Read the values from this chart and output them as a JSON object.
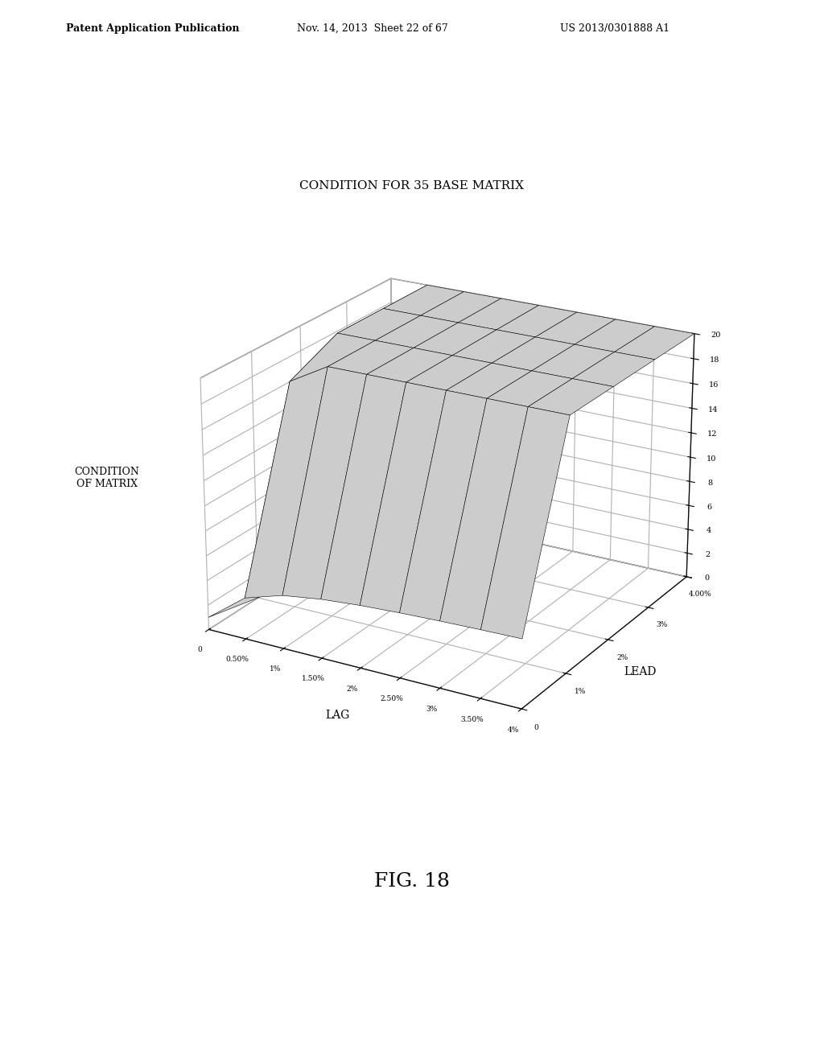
{
  "title": "CONDITION FOR 35 BASE MATRIX",
  "xlabel": "LAG",
  "ylabel": "LEAD",
  "lag_ticks": [
    "0",
    "0.50%",
    "1%",
    "1.50%",
    "2%",
    "2.50%",
    "3%",
    "3.50%",
    "4%"
  ],
  "lead_ticks": [
    "0",
    "1%",
    "2%",
    "3%",
    "4.00%"
  ],
  "lag_values": [
    0.0,
    0.005,
    0.01,
    0.015,
    0.02,
    0.025,
    0.03,
    0.035,
    0.04
  ],
  "lead_values": [
    0.0,
    0.01,
    0.02,
    0.03,
    0.04
  ],
  "zlim": [
    0,
    20
  ],
  "zticks": [
    0,
    2,
    4,
    6,
    8,
    10,
    12,
    14,
    16,
    18,
    20
  ],
  "fig_caption": "FIG. 18",
  "header_left": "Patent Application Publication",
  "header_mid": "Nov. 14, 2013  Sheet 22 of 67",
  "header_right": "US 2013/0301888 A1",
  "background_color": "#ffffff",
  "surface_facecolor": "#cccccc",
  "edge_color": "#000000",
  "elev": 22,
  "azim": -60
}
